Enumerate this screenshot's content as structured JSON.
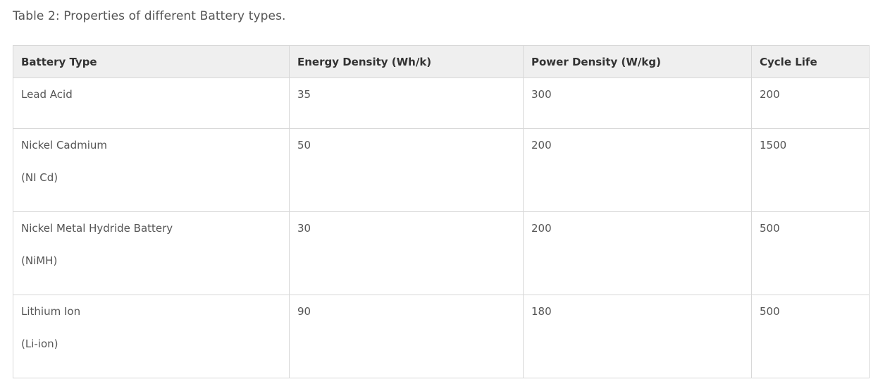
{
  "caption": "Table 2: Properties of different Battery types.",
  "table": {
    "headers": [
      "Battery Type",
      "Energy Density (Wh/k)",
      "Power Density (W/kg)",
      "Cycle Life"
    ],
    "rows": [
      {
        "type": "Lead Acid",
        "type_sub": "",
        "energy": "35",
        "power": "300",
        "cycle": "200"
      },
      {
        "type": "Nickel Cadmium",
        "type_sub": "(NI Cd)",
        "energy": "50",
        "power": "200",
        "cycle": "1500"
      },
      {
        "type": "Nickel Metal Hydride Battery",
        "type_sub": "(NiMH)",
        "energy": "30",
        "power": "200",
        "cycle": "500"
      },
      {
        "type": "Lithium Ion",
        "type_sub": "(Li-ion)",
        "energy": "90",
        "power": "180",
        "cycle": "500"
      }
    ]
  }
}
